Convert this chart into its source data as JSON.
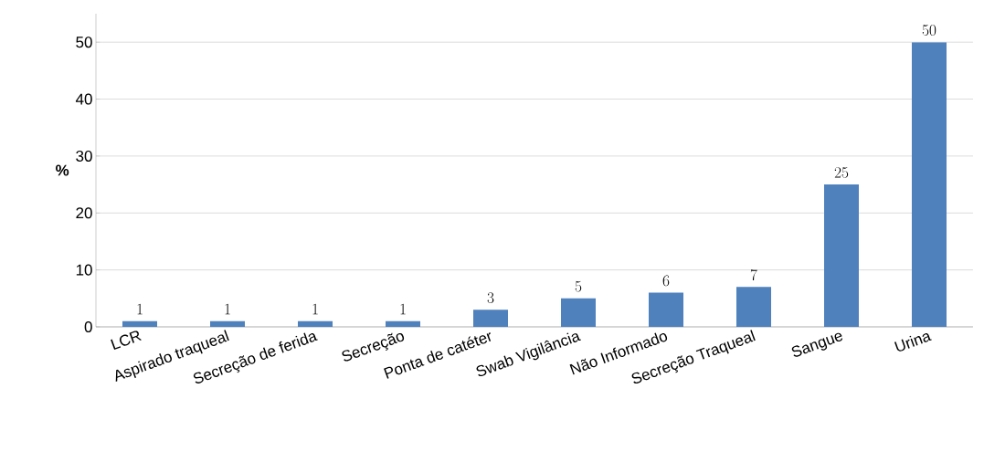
{
  "chart_data": {
    "type": "bar",
    "ylabel": "%",
    "categories": [
      "LCR",
      "Aspirado traqueal",
      "Secreção de ferida",
      "Secreção",
      "Ponta de catéter",
      "Swab Vigilância",
      "Não Informado",
      "Secreção Traqueal",
      "Sangue",
      "Urina"
    ],
    "values": [
      1,
      1,
      1,
      1,
      3,
      5,
      6,
      7,
      25,
      50
    ],
    "color": "#4f81bd",
    "ylim": [
      0,
      55
    ],
    "yticks": [
      0,
      10,
      20,
      30,
      40,
      50
    ],
    "grid": "y",
    "data_labels": true
  }
}
